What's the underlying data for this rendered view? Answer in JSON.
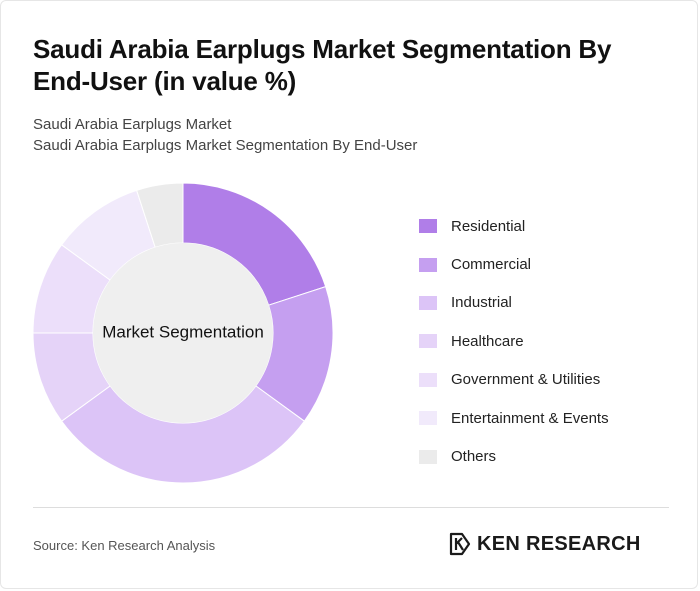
{
  "title": "Saudi Arabia Earplugs Market Segmentation By End-User (in value %)",
  "subtitle_line1": "Saudi Arabia Earplugs Market",
  "subtitle_line2": "Saudi Arabia Earplugs Market Segmentation By End-User",
  "source": "Source: Ken Research Analysis",
  "logo_text": "KEN RESEARCH",
  "chart_data": {
    "type": "pie",
    "center_label": "Market Segmentation",
    "categories": [
      "Residential",
      "Commercial",
      "Industrial",
      "Healthcare",
      "Government & Utilities",
      "Entertainment & Events",
      "Others"
    ],
    "values": [
      20,
      15,
      30,
      10,
      10,
      10,
      5
    ],
    "colors": [
      "#b07ee8",
      "#c59ff0",
      "#dcc4f7",
      "#e5d3f8",
      "#ecdffa",
      "#f1eafb",
      "#ebebeb"
    ],
    "legend_position": "right"
  }
}
